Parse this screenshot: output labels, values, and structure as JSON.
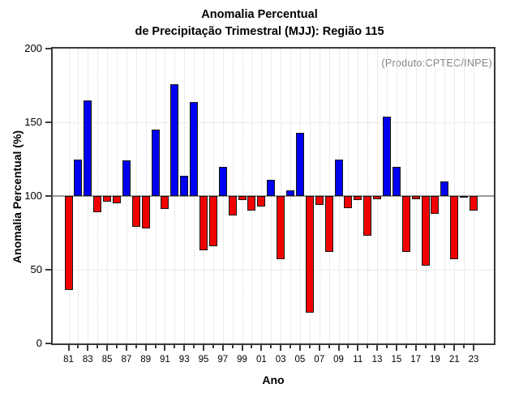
{
  "chart_data": {
    "type": "bar",
    "title_line1": "Anomalia Percentual",
    "title_line2": "de Precipitação Trimestral (MJJ): Região 115",
    "annotation": "(Produto:CPTEC/INPE)",
    "xlabel": "Ano",
    "ylabel": "Anomalia Percentual (%)",
    "ylim": [
      0,
      200
    ],
    "yticks": [
      0,
      50,
      100,
      150,
      200
    ],
    "baseline": 100,
    "grid": "dotted, vertical line each year, horizontal at 50/100/150",
    "legend_position": "none",
    "x_tick_labels": [
      "81",
      "83",
      "85",
      "87",
      "89",
      "91",
      "93",
      "95",
      "97",
      "99",
      "01",
      "03",
      "05",
      "07",
      "09",
      "11",
      "13",
      "15",
      "17",
      "19",
      "21",
      "23"
    ],
    "years": [
      1981,
      1982,
      1983,
      1984,
      1985,
      1986,
      1987,
      1988,
      1989,
      1990,
      1991,
      1992,
      1993,
      1994,
      1995,
      1996,
      1997,
      1998,
      1999,
      2000,
      2001,
      2002,
      2003,
      2004,
      2005,
      2006,
      2007,
      2008,
      2009,
      2010,
      2011,
      2012,
      2013,
      2014,
      2015,
      2016,
      2017,
      2018,
      2019,
      2020,
      2021,
      2022,
      2023
    ],
    "values": [
      36,
      125,
      165,
      89,
      96,
      95,
      124,
      79,
      78,
      145,
      91,
      176,
      114,
      164,
      63,
      66,
      120,
      87,
      97,
      90,
      93,
      111,
      57,
      104,
      143,
      21,
      94,
      62,
      125,
      92,
      97,
      73,
      98,
      154,
      120,
      62,
      98,
      53,
      88,
      110,
      57,
      99,
      90
    ],
    "colors": {
      "above_baseline": "#0000F0",
      "below_baseline": "#F00000",
      "bar_outline": "#151515",
      "baseline_line": "#999999",
      "frame": "#3a3a3a",
      "gridline": "#d6d6d6",
      "annotation_text": "#858585",
      "text": "#000000",
      "background": "#ffffff"
    }
  }
}
